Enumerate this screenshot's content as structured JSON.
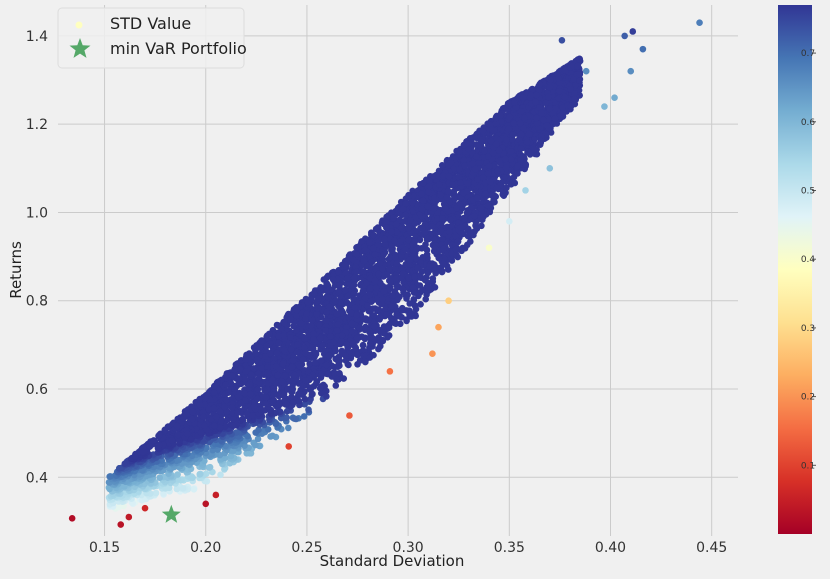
{
  "chart_data": {
    "type": "scatter",
    "title": "",
    "xlabel": "Standard Deviation",
    "ylabel": "Returns",
    "xlim": [
      0.127,
      0.463
    ],
    "ylim": [
      0.267,
      1.47
    ],
    "xticks": [
      0.15,
      0.2,
      0.25,
      0.3,
      0.35,
      0.4,
      0.45
    ],
    "xtick_labels": [
      "0.15",
      "0.20",
      "0.25",
      "0.30",
      "0.35",
      "0.40",
      "0.45"
    ],
    "yticks": [
      0.4,
      0.6,
      0.8,
      1.0,
      1.2,
      1.4
    ],
    "ytick_labels": [
      "0.4",
      "0.6",
      "0.8",
      "1.0",
      "1.2",
      "1.4"
    ],
    "grid": true,
    "legend": {
      "placement": "top-left",
      "entries": [
        {
          "label": "STD Value",
          "marker": "dot",
          "color": "#ffffbf"
        },
        {
          "label": "min VaR Portfolio",
          "marker": "star",
          "color": "#55a868"
        }
      ]
    },
    "colorbar": {
      "colormap": "RdYlBu",
      "range": [
        0.0,
        0.77
      ],
      "ticks": [
        0.1,
        0.2,
        0.3,
        0.4,
        0.5,
        0.6,
        0.7
      ],
      "tick_labels": [
        "0.1",
        "0.2",
        "0.3",
        "0.4",
        "0.5",
        "0.6",
        "0.7"
      ],
      "stops": [
        "#a50026",
        "#d73027",
        "#f46d43",
        "#fdae61",
        "#fee090",
        "#ffffbf",
        "#e0f3f8",
        "#abd9e9",
        "#74add1",
        "#4575b4",
        "#313695"
      ]
    },
    "series": [
      {
        "name": "STD Value",
        "description_of_cloud": "about 10000 simulated portfolios forming a diagonal band",
        "band": {
          "x_range": [
            0.152,
            0.385
          ],
          "upper_edge": [
            [
              0.152,
              0.4
            ],
            [
              0.2,
              0.59
            ],
            [
              0.25,
              0.81
            ],
            [
              0.3,
              1.04
            ],
            [
              0.35,
              1.25
            ],
            [
              0.385,
              1.35
            ]
          ],
          "lower_edge": [
            [
              0.152,
              0.32
            ],
            [
              0.2,
              0.38
            ],
            [
              0.25,
              0.54
            ],
            [
              0.3,
              0.74
            ],
            [
              0.35,
              1.05
            ],
            [
              0.385,
              1.26
            ]
          ],
          "sharpe_range": [
            0.05,
            0.75
          ]
        },
        "outliers": [
          {
            "x": 0.134,
            "y": 0.307,
            "c": 0.02
          },
          {
            "x": 0.158,
            "y": 0.293,
            "c": 0.03
          },
          {
            "x": 0.162,
            "y": 0.31,
            "c": 0.04
          },
          {
            "x": 0.17,
            "y": 0.33,
            "c": 0.06
          },
          {
            "x": 0.2,
            "y": 0.34,
            "c": 0.03
          },
          {
            "x": 0.205,
            "y": 0.36,
            "c": 0.05
          },
          {
            "x": 0.241,
            "y": 0.47,
            "c": 0.1
          },
          {
            "x": 0.271,
            "y": 0.54,
            "c": 0.13
          },
          {
            "x": 0.291,
            "y": 0.64,
            "c": 0.16
          },
          {
            "x": 0.312,
            "y": 0.68,
            "c": 0.2
          },
          {
            "x": 0.315,
            "y": 0.74,
            "c": 0.22
          },
          {
            "x": 0.32,
            "y": 0.8,
            "c": 0.28
          },
          {
            "x": 0.34,
            "y": 0.92,
            "c": 0.4
          },
          {
            "x": 0.35,
            "y": 0.98,
            "c": 0.48
          },
          {
            "x": 0.358,
            "y": 1.05,
            "c": 0.55
          },
          {
            "x": 0.37,
            "y": 1.1,
            "c": 0.58
          },
          {
            "x": 0.376,
            "y": 1.39,
            "c": 0.74
          },
          {
            "x": 0.388,
            "y": 1.32,
            "c": 0.66
          },
          {
            "x": 0.397,
            "y": 1.24,
            "c": 0.6
          },
          {
            "x": 0.402,
            "y": 1.26,
            "c": 0.62
          },
          {
            "x": 0.407,
            "y": 1.4,
            "c": 0.72
          },
          {
            "x": 0.41,
            "y": 1.32,
            "c": 0.66
          },
          {
            "x": 0.411,
            "y": 1.41,
            "c": 0.76
          },
          {
            "x": 0.416,
            "y": 1.37,
            "c": 0.7
          },
          {
            "x": 0.444,
            "y": 1.43,
            "c": 0.68
          }
        ]
      },
      {
        "name": "min VaR Portfolio",
        "marker": "star",
        "color": "#55a868",
        "points": [
          {
            "x": 0.183,
            "y": 0.315
          }
        ]
      }
    ]
  }
}
